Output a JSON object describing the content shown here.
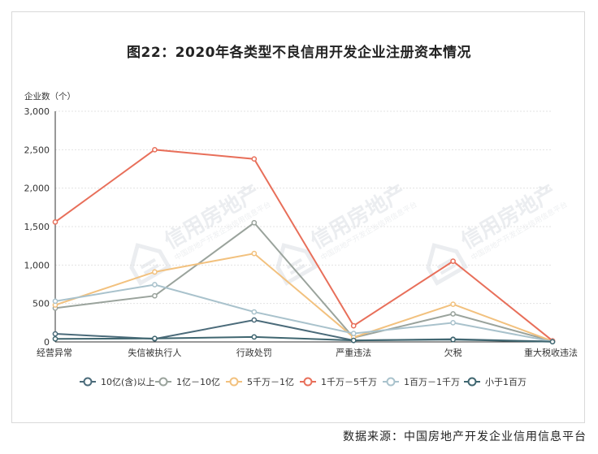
{
  "chart_data": {
    "type": "line",
    "title": "图22：2020年各类型不良信用开发企业注册资本情况",
    "ylabel": "企业数（个）",
    "xlabel": "",
    "ylim": [
      0,
      3000
    ],
    "yticks": [
      "0",
      "500",
      "1,000",
      "1,500",
      "2,000",
      "2,500",
      "3,000"
    ],
    "ytick_values": [
      0,
      500,
      1000,
      1500,
      2000,
      2500,
      3000
    ],
    "categories": [
      "经营异常",
      "失信被执行人",
      "行政处罚",
      "严重违法",
      "欠税",
      "重大税收违法"
    ],
    "grid": true,
    "legend_position": "bottom",
    "series": [
      {
        "name": "10亿(含)以上",
        "color": "#4b6b7a",
        "values": [
          105,
          40,
          285,
          20,
          35,
          5
        ]
      },
      {
        "name": "1亿－10亿",
        "color": "#9aa39c",
        "values": [
          440,
          600,
          1550,
          55,
          365,
          10
        ]
      },
      {
        "name": "5千万－1亿",
        "color": "#f2c17e",
        "values": [
          480,
          910,
          1150,
          60,
          490,
          10
        ]
      },
      {
        "name": "1千万－5千万",
        "color": "#e86f5a",
        "values": [
          1560,
          2500,
          2380,
          210,
          1050,
          15
        ]
      },
      {
        "name": "1百万－1千万",
        "color": "#a9c2cc",
        "values": [
          530,
          745,
          390,
          110,
          250,
          5
        ]
      },
      {
        "name": "小于1百万",
        "color": "#3f6670",
        "values": [
          40,
          45,
          65,
          20,
          30,
          2
        ]
      }
    ]
  },
  "watermark": {
    "brand": "信用房地产",
    "sub": "中国房地产开发企业信用信息平台"
  },
  "source": "数据来源：中国房地产开发企业信用信息平台"
}
